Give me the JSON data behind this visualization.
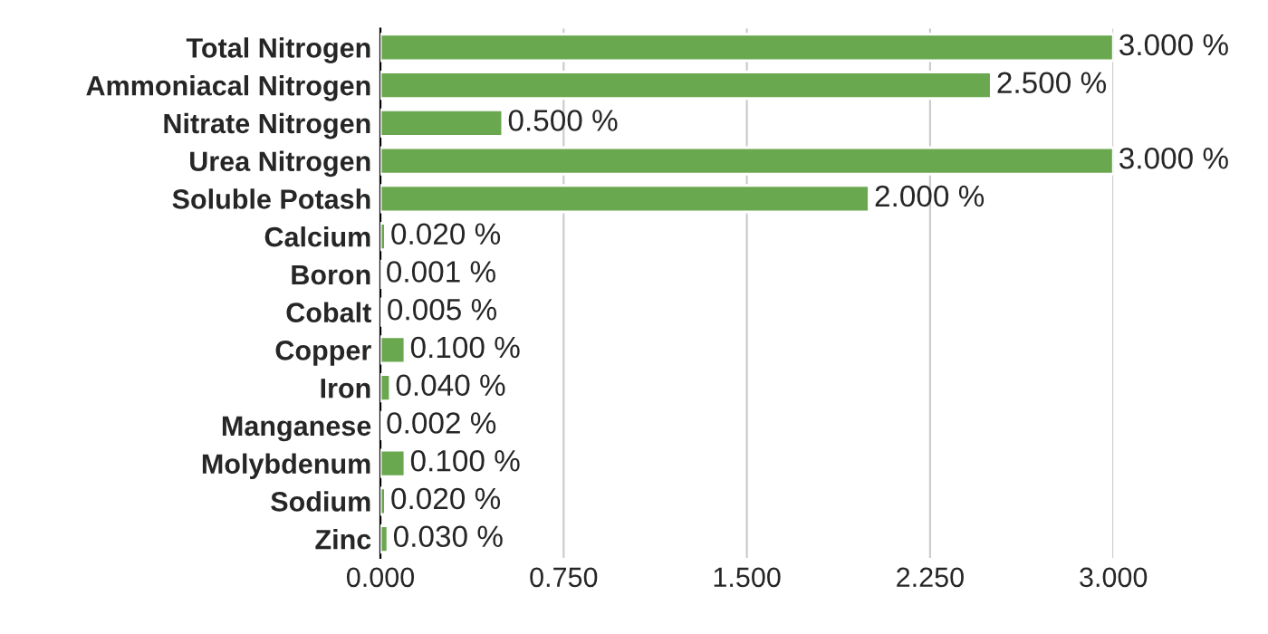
{
  "chart_data": {
    "type": "bar",
    "orientation": "horizontal",
    "categories": [
      "Total Nitrogen",
      "Ammoniacal Nitrogen",
      "Nitrate Nitrogen",
      "Urea Nitrogen",
      "Soluble Potash",
      "Calcium",
      "Boron",
      "Cobalt",
      "Copper",
      "Iron",
      "Manganese",
      "Molybdenum",
      "Sodium",
      "Zinc"
    ],
    "values": [
      3.0,
      2.5,
      0.5,
      3.0,
      2.0,
      0.02,
      0.001,
      0.005,
      0.1,
      0.04,
      0.002,
      0.1,
      0.02,
      0.03
    ],
    "value_labels": [
      "3.000 %",
      "2.500 %",
      "0.500 %",
      "3.000 %",
      "2.000 %",
      "0.020 %",
      "0.001 %",
      "0.005 %",
      "0.100 %",
      "0.040 %",
      "0.002 %",
      "0.100 %",
      "0.020 %",
      "0.030 %"
    ],
    "color": "#6aa84f",
    "xlim": [
      0,
      3
    ],
    "xticks": [
      {
        "value": 0,
        "label": "0.000"
      },
      {
        "value": 0.75,
        "label": "0.750"
      },
      {
        "value": 1.5,
        "label": "1.500"
      },
      {
        "value": 2.25,
        "label": "2.250"
      },
      {
        "value": 3,
        "label": "3.000"
      }
    ],
    "grid": "x"
  }
}
